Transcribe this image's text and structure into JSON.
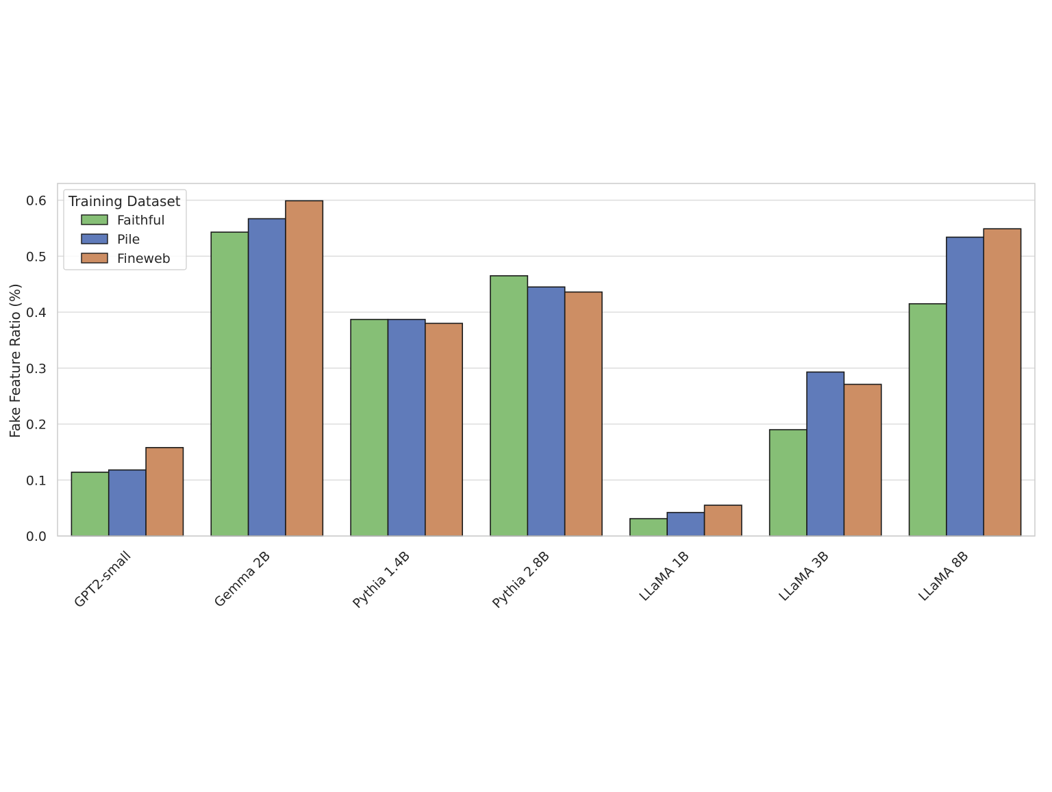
{
  "chart_data": {
    "type": "bar",
    "title": "",
    "xlabel": "",
    "ylabel": "Fake Feature Ratio (%)",
    "ylim": [
      0,
      0.63
    ],
    "yticks": [
      0.0,
      0.1,
      0.2,
      0.3,
      0.4,
      0.5,
      0.6
    ],
    "ytick_labels": [
      "0.0",
      "0.1",
      "0.2",
      "0.3",
      "0.4",
      "0.5",
      "0.6"
    ],
    "grid": "horizontal",
    "categories": [
      "GPT2-small",
      "Gemma 2B",
      "Pythia 1.4B",
      "Pythia 2.8B",
      "LLaMA 1B",
      "LLaMA 3B",
      "LLaMA 8B"
    ],
    "series": [
      {
        "name": "Faithful",
        "color": "#86bf76",
        "values": [
          0.114,
          0.543,
          0.387,
          0.465,
          0.031,
          0.19,
          0.415
        ]
      },
      {
        "name": "Pile",
        "color": "#607bba",
        "values": [
          0.118,
          0.567,
          0.387,
          0.445,
          0.042,
          0.293,
          0.534
        ]
      },
      {
        "name": "Fineweb",
        "color": "#cd8e64",
        "values": [
          0.158,
          0.599,
          0.38,
          0.436,
          0.055,
          0.271,
          0.549
        ]
      }
    ],
    "legend": {
      "title": "Training Dataset",
      "placement": "upper-left"
    }
  }
}
